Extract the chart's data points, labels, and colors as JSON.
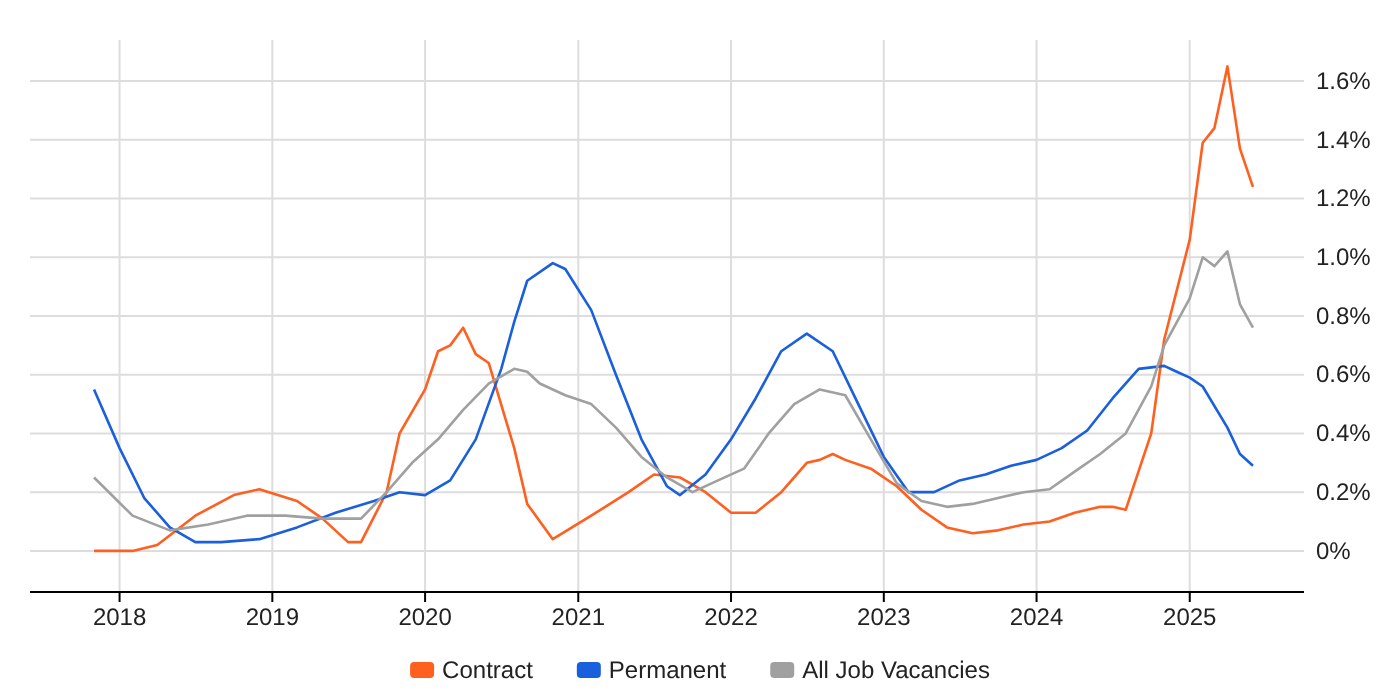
{
  "chart_data": {
    "type": "line",
    "xlim": [
      "2017-06",
      "2025-10"
    ],
    "ylim": [
      -0.14,
      1.74
    ],
    "xticks": [
      {
        "value": "2018",
        "label": "2018"
      },
      {
        "value": "2019",
        "label": "2019"
      },
      {
        "value": "2020",
        "label": "2020"
      },
      {
        "value": "2021",
        "label": "2021"
      },
      {
        "value": "2022",
        "label": "2022"
      },
      {
        "value": "2023",
        "label": "2023"
      },
      {
        "value": "2024",
        "label": "2024"
      },
      {
        "value": "2025",
        "label": "2025"
      }
    ],
    "yticks": [
      {
        "value": 0,
        "label": "0%"
      },
      {
        "value": 0.2,
        "label": "0.2%"
      },
      {
        "value": 0.4,
        "label": "0.4%"
      },
      {
        "value": 0.6,
        "label": "0.6%"
      },
      {
        "value": 0.8,
        "label": "0.8%"
      },
      {
        "value": 1.0,
        "label": "1.0%"
      },
      {
        "value": 1.2,
        "label": "1.2%"
      },
      {
        "value": 1.4,
        "label": "1.4%"
      },
      {
        "value": 1.6,
        "label": "1.6%"
      }
    ],
    "grid": true,
    "legend": "bottom",
    "marker": "none",
    "line_style": "solid",
    "series": [
      {
        "name": "Contract",
        "color": "#ff5f1f",
        "x": [
          "2017-11",
          "2018-02",
          "2018-04",
          "2018-07",
          "2018-10",
          "2018-12",
          "2019-03",
          "2019-05",
          "2019-07",
          "2019-08",
          "2019-10",
          "2019-11",
          "2020-01",
          "2020-02",
          "2020-03",
          "2020-04",
          "2020-05",
          "2020-06",
          "2020-08",
          "2020-09",
          "2020-11",
          "2021-02",
          "2021-05",
          "2021-07",
          "2021-09",
          "2021-11",
          "2022-01",
          "2022-03",
          "2022-05",
          "2022-07",
          "2022-08",
          "2022-09",
          "2022-10",
          "2022-12",
          "2023-02",
          "2023-04",
          "2023-06",
          "2023-08",
          "2023-10",
          "2023-12",
          "2024-02",
          "2024-04",
          "2024-06",
          "2024-07",
          "2024-08",
          "2024-10",
          "2024-11",
          "2025-01",
          "2025-02",
          "2025-03",
          "2025-04",
          "2025-05",
          "2025-06"
        ],
        "values": [
          0,
          0,
          0.02,
          0.12,
          0.19,
          0.21,
          0.17,
          0.11,
          0.03,
          0.03,
          0.2,
          0.4,
          0.55,
          0.68,
          0.7,
          0.76,
          0.67,
          0.64,
          0.35,
          0.16,
          0.04,
          0.12,
          0.2,
          0.26,
          0.25,
          0.2,
          0.13,
          0.13,
          0.2,
          0.3,
          0.31,
          0.33,
          0.31,
          0.28,
          0.22,
          0.14,
          0.08,
          0.06,
          0.07,
          0.09,
          0.1,
          0.13,
          0.15,
          0.15,
          0.14,
          0.4,
          0.72,
          1.06,
          1.39,
          1.44,
          1.65,
          1.37,
          1.24
        ]
      },
      {
        "name": "Permanent",
        "color": "#1a5fdc",
        "x": [
          "2017-11",
          "2018-01",
          "2018-03",
          "2018-05",
          "2018-07",
          "2018-09",
          "2018-12",
          "2019-03",
          "2019-06",
          "2019-09",
          "2019-11",
          "2020-01",
          "2020-03",
          "2020-05",
          "2020-07",
          "2020-08",
          "2020-09",
          "2020-11",
          "2020-12",
          "2021-02",
          "2021-04",
          "2021-06",
          "2021-08",
          "2021-09",
          "2021-11",
          "2022-01",
          "2022-03",
          "2022-05",
          "2022-07",
          "2022-09",
          "2022-11",
          "2023-01",
          "2023-03",
          "2023-05",
          "2023-07",
          "2023-09",
          "2023-11",
          "2024-01",
          "2024-03",
          "2024-05",
          "2024-07",
          "2024-09",
          "2024-11",
          "2024-12",
          "2025-01",
          "2025-02",
          "2025-04",
          "2025-05",
          "2025-06"
        ],
        "values": [
          0.55,
          0.35,
          0.18,
          0.08,
          0.03,
          0.03,
          0.04,
          0.08,
          0.13,
          0.17,
          0.2,
          0.19,
          0.24,
          0.38,
          0.62,
          0.78,
          0.92,
          0.98,
          0.96,
          0.82,
          0.6,
          0.38,
          0.22,
          0.19,
          0.26,
          0.38,
          0.52,
          0.68,
          0.74,
          0.68,
          0.5,
          0.32,
          0.2,
          0.2,
          0.24,
          0.26,
          0.29,
          0.31,
          0.35,
          0.41,
          0.52,
          0.62,
          0.63,
          0.61,
          0.59,
          0.56,
          0.42,
          0.33,
          0.29
        ]
      },
      {
        "name": "All Job Vacancies",
        "color": "#a0a0a0",
        "x": [
          "2017-11",
          "2018-02",
          "2018-05",
          "2018-08",
          "2018-11",
          "2019-02",
          "2019-05",
          "2019-08",
          "2019-10",
          "2019-12",
          "2020-02",
          "2020-04",
          "2020-06",
          "2020-08",
          "2020-09",
          "2020-10",
          "2020-12",
          "2021-02",
          "2021-04",
          "2021-06",
          "2021-08",
          "2021-10",
          "2021-12",
          "2022-02",
          "2022-04",
          "2022-06",
          "2022-08",
          "2022-10",
          "2022-12",
          "2023-02",
          "2023-04",
          "2023-06",
          "2023-08",
          "2023-10",
          "2023-12",
          "2024-02",
          "2024-04",
          "2024-06",
          "2024-08",
          "2024-10",
          "2024-11",
          "2025-01",
          "2025-02",
          "2025-03",
          "2025-04",
          "2025-05",
          "2025-06"
        ],
        "values": [
          0.25,
          0.12,
          0.07,
          0.09,
          0.12,
          0.12,
          0.11,
          0.11,
          0.2,
          0.3,
          0.38,
          0.48,
          0.57,
          0.62,
          0.61,
          0.57,
          0.53,
          0.5,
          0.42,
          0.32,
          0.25,
          0.2,
          0.24,
          0.28,
          0.4,
          0.5,
          0.55,
          0.53,
          0.38,
          0.23,
          0.17,
          0.15,
          0.16,
          0.18,
          0.2,
          0.21,
          0.27,
          0.33,
          0.4,
          0.56,
          0.7,
          0.86,
          1.0,
          0.97,
          1.02,
          0.84,
          0.76
        ]
      }
    ]
  }
}
